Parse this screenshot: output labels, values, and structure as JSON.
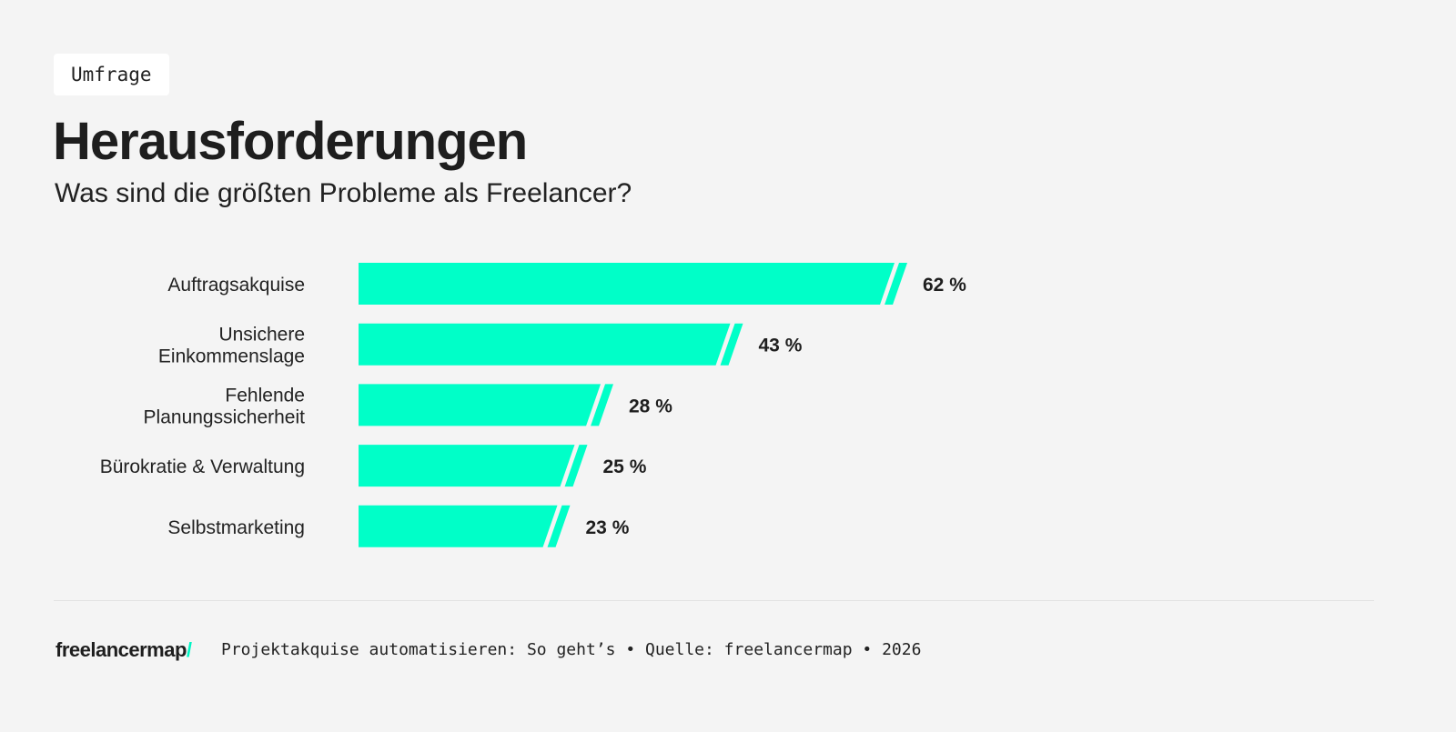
{
  "tag": "Umfrage",
  "title": "Herausforderungen",
  "subtitle": "Was sind die größten Probleme als Freelancer?",
  "colors": {
    "bar": "#00ffc8",
    "background": "#f4f4f4",
    "text": "#1e1e1e"
  },
  "chart_data": {
    "type": "bar",
    "orientation": "horizontal",
    "categories": [
      [
        "Auftragsakquise"
      ],
      [
        "Unsichere",
        "Einkommenslage"
      ],
      [
        "Fehlende",
        "Planungssicherheit"
      ],
      [
        "Bürokratie & Verwaltung"
      ],
      [
        "Selbstmarketing"
      ]
    ],
    "values": [
      62,
      43,
      28,
      25,
      23
    ],
    "value_labels": [
      "62 %",
      "43 %",
      "28 %",
      "25 %",
      "23 %"
    ],
    "unit": "%",
    "grid": false
  },
  "footer": {
    "logo": "freelancermap",
    "logo_slash": "/",
    "text": "Projektakquise automatisieren: So geht’s • Quelle: freelancermap • 2026"
  }
}
